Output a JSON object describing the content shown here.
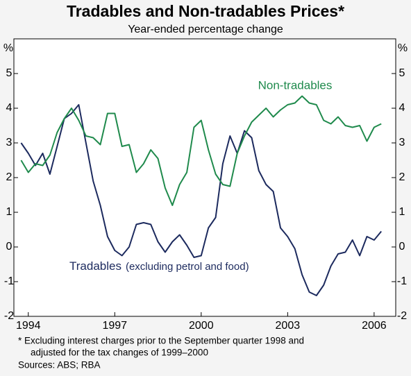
{
  "chart_data": {
    "type": "line",
    "title": "Tradables and Non-tradables Prices*",
    "subtitle": "Year-ended percentage change",
    "y_unit_left": "%",
    "y_unit_right": "%",
    "x": [
      1993.75,
      1994,
      1994.25,
      1994.5,
      1994.75,
      1995,
      1995.25,
      1995.5,
      1995.75,
      1996,
      1996.25,
      1996.5,
      1996.75,
      1997,
      1997.25,
      1997.5,
      1997.75,
      1998,
      1998.25,
      1998.5,
      1998.75,
      1999,
      1999.25,
      1999.5,
      1999.75,
      2000,
      2000.25,
      2000.5,
      2000.75,
      2001,
      2001.25,
      2001.5,
      2001.75,
      2002,
      2002.25,
      2002.5,
      2002.75,
      2003,
      2003.25,
      2003.5,
      2003.75,
      2004,
      2004.25,
      2004.5,
      2004.75,
      2005,
      2005.25,
      2005.5,
      2005.75,
      2006,
      2006.25
    ],
    "series": [
      {
        "name": "Tradables",
        "color": "#1c2a5e",
        "values": [
          3.0,
          2.7,
          2.35,
          2.7,
          2.1,
          2.9,
          3.7,
          3.85,
          4.1,
          3.0,
          1.9,
          1.2,
          0.3,
          -0.1,
          -0.25,
          0.0,
          0.65,
          0.7,
          0.65,
          0.15,
          -0.15,
          0.15,
          0.35,
          0.05,
          -0.3,
          -0.25,
          0.55,
          0.85,
          2.4,
          3.2,
          2.7,
          3.35,
          3.15,
          2.2,
          1.8,
          1.6,
          0.55,
          0.3,
          -0.05,
          -0.8,
          -1.3,
          -1.4,
          -1.1,
          -0.55,
          -0.2,
          -0.15,
          0.2,
          -0.25,
          0.3,
          0.2,
          0.45
        ]
      },
      {
        "name": "Non-tradables",
        "color": "#1f8a4c",
        "values": [
          2.5,
          2.15,
          2.4,
          2.35,
          2.65,
          3.3,
          3.7,
          4.0,
          3.65,
          3.2,
          3.15,
          2.95,
          3.85,
          3.85,
          2.9,
          2.95,
          2.15,
          2.4,
          2.8,
          2.55,
          1.7,
          1.2,
          1.8,
          2.15,
          3.45,
          3.65,
          2.8,
          2.1,
          1.8,
          1.75,
          2.7,
          3.2,
          3.6,
          3.8,
          4.0,
          3.75,
          3.95,
          4.1,
          4.15,
          4.35,
          4.15,
          4.1,
          3.65,
          3.55,
          3.75,
          3.5,
          3.45,
          3.5,
          3.05,
          3.45,
          3.55
        ]
      }
    ],
    "annotations": [
      "Non-tradables",
      "Tradables",
      "(excluding petrol and food)"
    ],
    "xlim": [
      1993.5,
      2006.75
    ],
    "xticks": [
      1994,
      1997,
      2000,
      2003,
      2006
    ],
    "ylim": [
      -2,
      6
    ],
    "yticks": [
      -2,
      -1,
      0,
      1,
      2,
      3,
      4,
      5
    ],
    "notes": [
      "*   Excluding interest charges prior to the September quarter 1998 and",
      "adjusted for the tax changes of 1999–2000",
      "Sources: ABS; RBA"
    ]
  }
}
